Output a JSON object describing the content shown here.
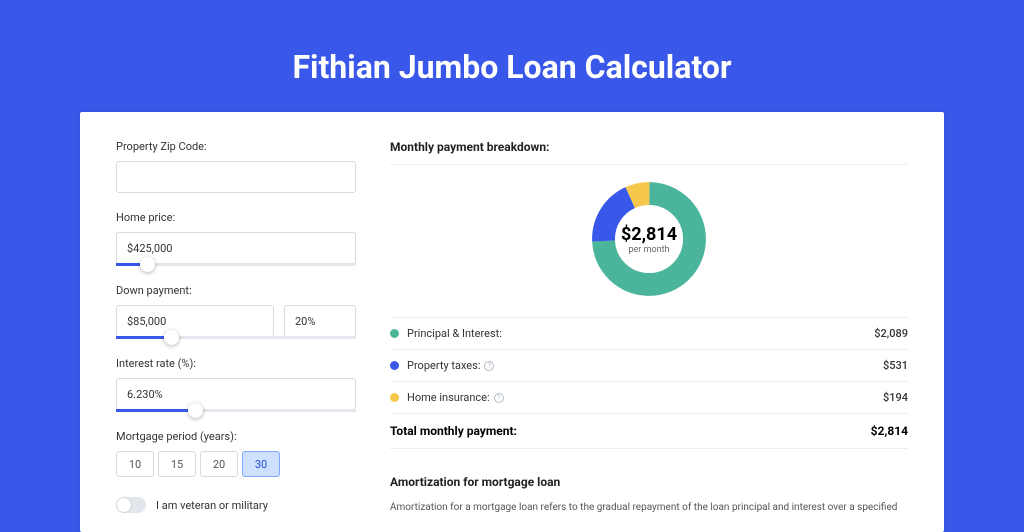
{
  "page": {
    "title": "Fithian Jumbo Loan Calculator",
    "bg_color": "#3957e8"
  },
  "form": {
    "zip": {
      "label": "Property Zip Code:",
      "value": ""
    },
    "home_price": {
      "label": "Home price:",
      "value": "$425,000",
      "slider_pct": 10
    },
    "down_payment": {
      "label": "Down payment:",
      "amount": "$85,000",
      "percent": "20%",
      "slider_pct": 20
    },
    "interest_rate": {
      "label": "Interest rate (%):",
      "value": "6.230%",
      "slider_pct": 30
    },
    "period": {
      "label": "Mortgage period (years):",
      "options": [
        "10",
        "15",
        "20",
        "30"
      ],
      "selected": "30"
    },
    "veteran": {
      "label": "I am veteran or military",
      "checked": false
    }
  },
  "breakdown": {
    "heading": "Monthly payment breakdown:",
    "donut": {
      "amount": "$2,814",
      "sub": "per month",
      "segments": [
        {
          "name": "pi",
          "pct": 74.2,
          "color": "#4bb59b"
        },
        {
          "name": "tax",
          "pct": 18.9,
          "color": "#3957e8"
        },
        {
          "name": "ins",
          "pct": 6.9,
          "color": "#f5c84b"
        }
      ]
    },
    "items": [
      {
        "label": "Principal & Interest:",
        "value": "$2,089",
        "color": "#4bb59b",
        "info": false
      },
      {
        "label": "Property taxes:",
        "value": "$531",
        "color": "#3957e8",
        "info": true
      },
      {
        "label": "Home insurance:",
        "value": "$194",
        "color": "#f5c84b",
        "info": true
      }
    ],
    "total": {
      "label": "Total monthly payment:",
      "value": "$2,814"
    }
  },
  "amortization": {
    "title": "Amortization for mortgage loan",
    "body": "Amortization for a mortgage loan refers to the gradual repayment of the loan principal and interest over a specified"
  }
}
